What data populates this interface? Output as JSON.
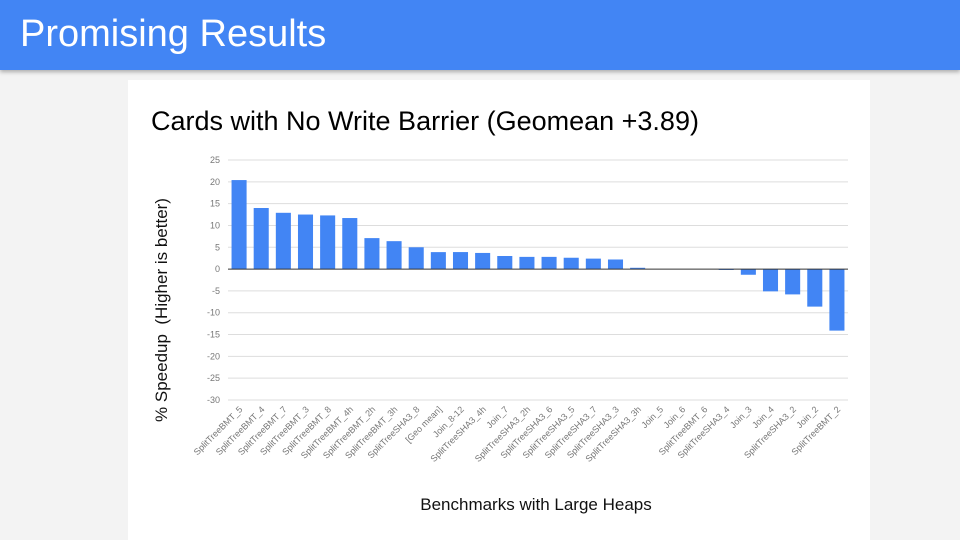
{
  "header": {
    "title": "Promising Results",
    "color": "#4285f4"
  },
  "chart_data": {
    "type": "bar",
    "title": "Cards with No Write Barrier (Geomean +3.89)",
    "xlabel": "Benchmarks with Large Heaps",
    "ylabel": "% Speedup  (Higher is better)",
    "ylim": [
      -30,
      25
    ],
    "yticks": [
      25,
      20,
      15,
      10,
      5,
      0,
      -5,
      -10,
      -15,
      -20,
      -25,
      -30
    ],
    "grid": true,
    "bar_color": "#4285f4",
    "categories": [
      "SplitTreeBMT_5",
      "SplitTreeBMT_4",
      "SplitTreeBMT_7",
      "SplitTreeBMT_3",
      "SplitTreeBMT_8",
      "SplitTreeBMT_4h",
      "SplitTreeBMT_2h",
      "SplitTreeBMT_3h",
      "SplitTreeSHA3_8",
      "[Geo mean]",
      "Join_8-12",
      "SplitTreeSHA3_4h",
      "Join_7",
      "SplitTreeSHA3_2h",
      "SplitTreeSHA3_6",
      "SplitTreeSHA3_5",
      "SplitTreeSHA3_7",
      "SplitTreeSHA3_3",
      "SplitTreeSHA3_3h",
      "Join_5",
      "Join_6",
      "SplitTreeBMT_6",
      "SplitTreeSHA3_4",
      "Join_3",
      "Join_4",
      "SplitTreeSHA3_2",
      "Join_2",
      "SplitTreeBMT_2"
    ],
    "values": [
      20.4,
      14.0,
      12.9,
      12.5,
      12.3,
      11.7,
      7.1,
      6.4,
      5.0,
      3.89,
      3.9,
      3.7,
      3.0,
      2.8,
      2.8,
      2.6,
      2.4,
      2.2,
      0.3,
      0,
      0,
      0,
      -0.2,
      -1.3,
      -5.1,
      -5.8,
      -8.6,
      -14.1
    ]
  }
}
